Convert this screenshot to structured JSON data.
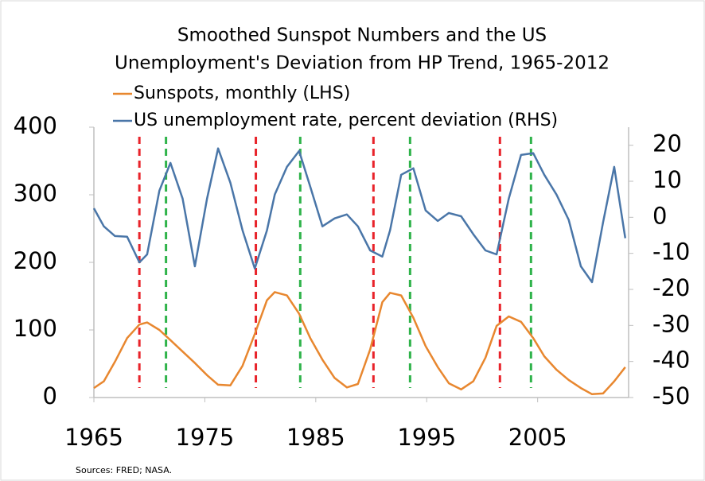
{
  "chart_data": {
    "type": "line",
    "title": [
      "Smoothed Sunspot Numbers and the US",
      "Unemployment's Deviation from HP Trend, 1965-2012"
    ],
    "source": "Sources:  FRED; NASA.",
    "legend": "top",
    "x": [
      1965.0,
      1965.9,
      1966.9,
      1968.0,
      1969.1,
      1969.8,
      1970.9,
      1971.9,
      1973.0,
      1974.1,
      1975.2,
      1976.2,
      1977.3,
      1978.4,
      1979.5,
      1980.6,
      1981.3,
      1982.4,
      1983.5,
      1984.5,
      1985.6,
      1986.7,
      1987.8,
      1988.8,
      1989.9,
      1991.0,
      1991.7,
      1992.7,
      1993.8,
      1994.9,
      1996.0,
      1997.0,
      1998.1,
      1999.2,
      2000.3,
      2001.3,
      2002.4,
      2003.5,
      2004.6,
      2005.6,
      2006.7,
      2007.8,
      2008.9,
      2009.9,
      2010.9,
      2011.9,
      2012.9
    ],
    "series": [
      {
        "name": "Sunspots, monthly (LHS)",
        "color": "#e8872f",
        "values": [
          14,
          24,
          53,
          88,
          108,
          111,
          100,
          85,
          68,
          51,
          33,
          19,
          18,
          47,
          94,
          144,
          156,
          151,
          124,
          88,
          56,
          29,
          15,
          20,
          71,
          141,
          155,
          151,
          118,
          76,
          45,
          21,
          12,
          24,
          59,
          106,
          120,
          112,
          88,
          61,
          41,
          26,
          14,
          5,
          6,
          24,
          45
        ]
      },
      {
        "name": "US unemployment rate, percent deviation (RHS)",
        "color": "#4a76a8",
        "axis": "y2",
        "values": [
          2.5,
          -2.5,
          -5.2,
          -5.4,
          -12.5,
          -10.3,
          7.4,
          15.1,
          5.2,
          -13.6,
          5.2,
          19.1,
          9.6,
          -3.6,
          -14.2,
          -3.6,
          6.3,
          14.0,
          18.4,
          8.5,
          -2.5,
          -0.3,
          0.8,
          -2.5,
          -9.2,
          -10.9,
          -3.6,
          11.8,
          13.6,
          1.9,
          -1.0,
          1.2,
          0.3,
          -4.7,
          -9.2,
          -10.3,
          5.2,
          17.3,
          17.8,
          11.8,
          6.3,
          -0.7,
          -13.6,
          -18.0,
          -1.4,
          14.0,
          -5.8
        ]
      }
    ],
    "vlines": [
      {
        "x": 1969.1,
        "color": "#e8232a"
      },
      {
        "x": 1979.6,
        "color": "#e8232a"
      },
      {
        "x": 1990.2,
        "color": "#e8232a"
      },
      {
        "x": 2001.6,
        "color": "#e8232a"
      },
      {
        "x": 1971.5,
        "color": "#2fb34a"
      },
      {
        "x": 1983.6,
        "color": "#2fb34a"
      },
      {
        "x": 1993.5,
        "color": "#2fb34a"
      },
      {
        "x": 2004.4,
        "color": "#2fb34a"
      }
    ],
    "xlim": [
      1965,
      2013.2
    ],
    "xticks": [
      1965,
      1975,
      1985,
      1995,
      2005
    ],
    "ylim": [
      0,
      400
    ],
    "yticks": [
      0,
      100,
      200,
      300,
      400
    ],
    "y2lim": [
      -50,
      25
    ],
    "y2ticks": [
      -50,
      -40,
      -30,
      -20,
      -10,
      0,
      10,
      20
    ]
  }
}
